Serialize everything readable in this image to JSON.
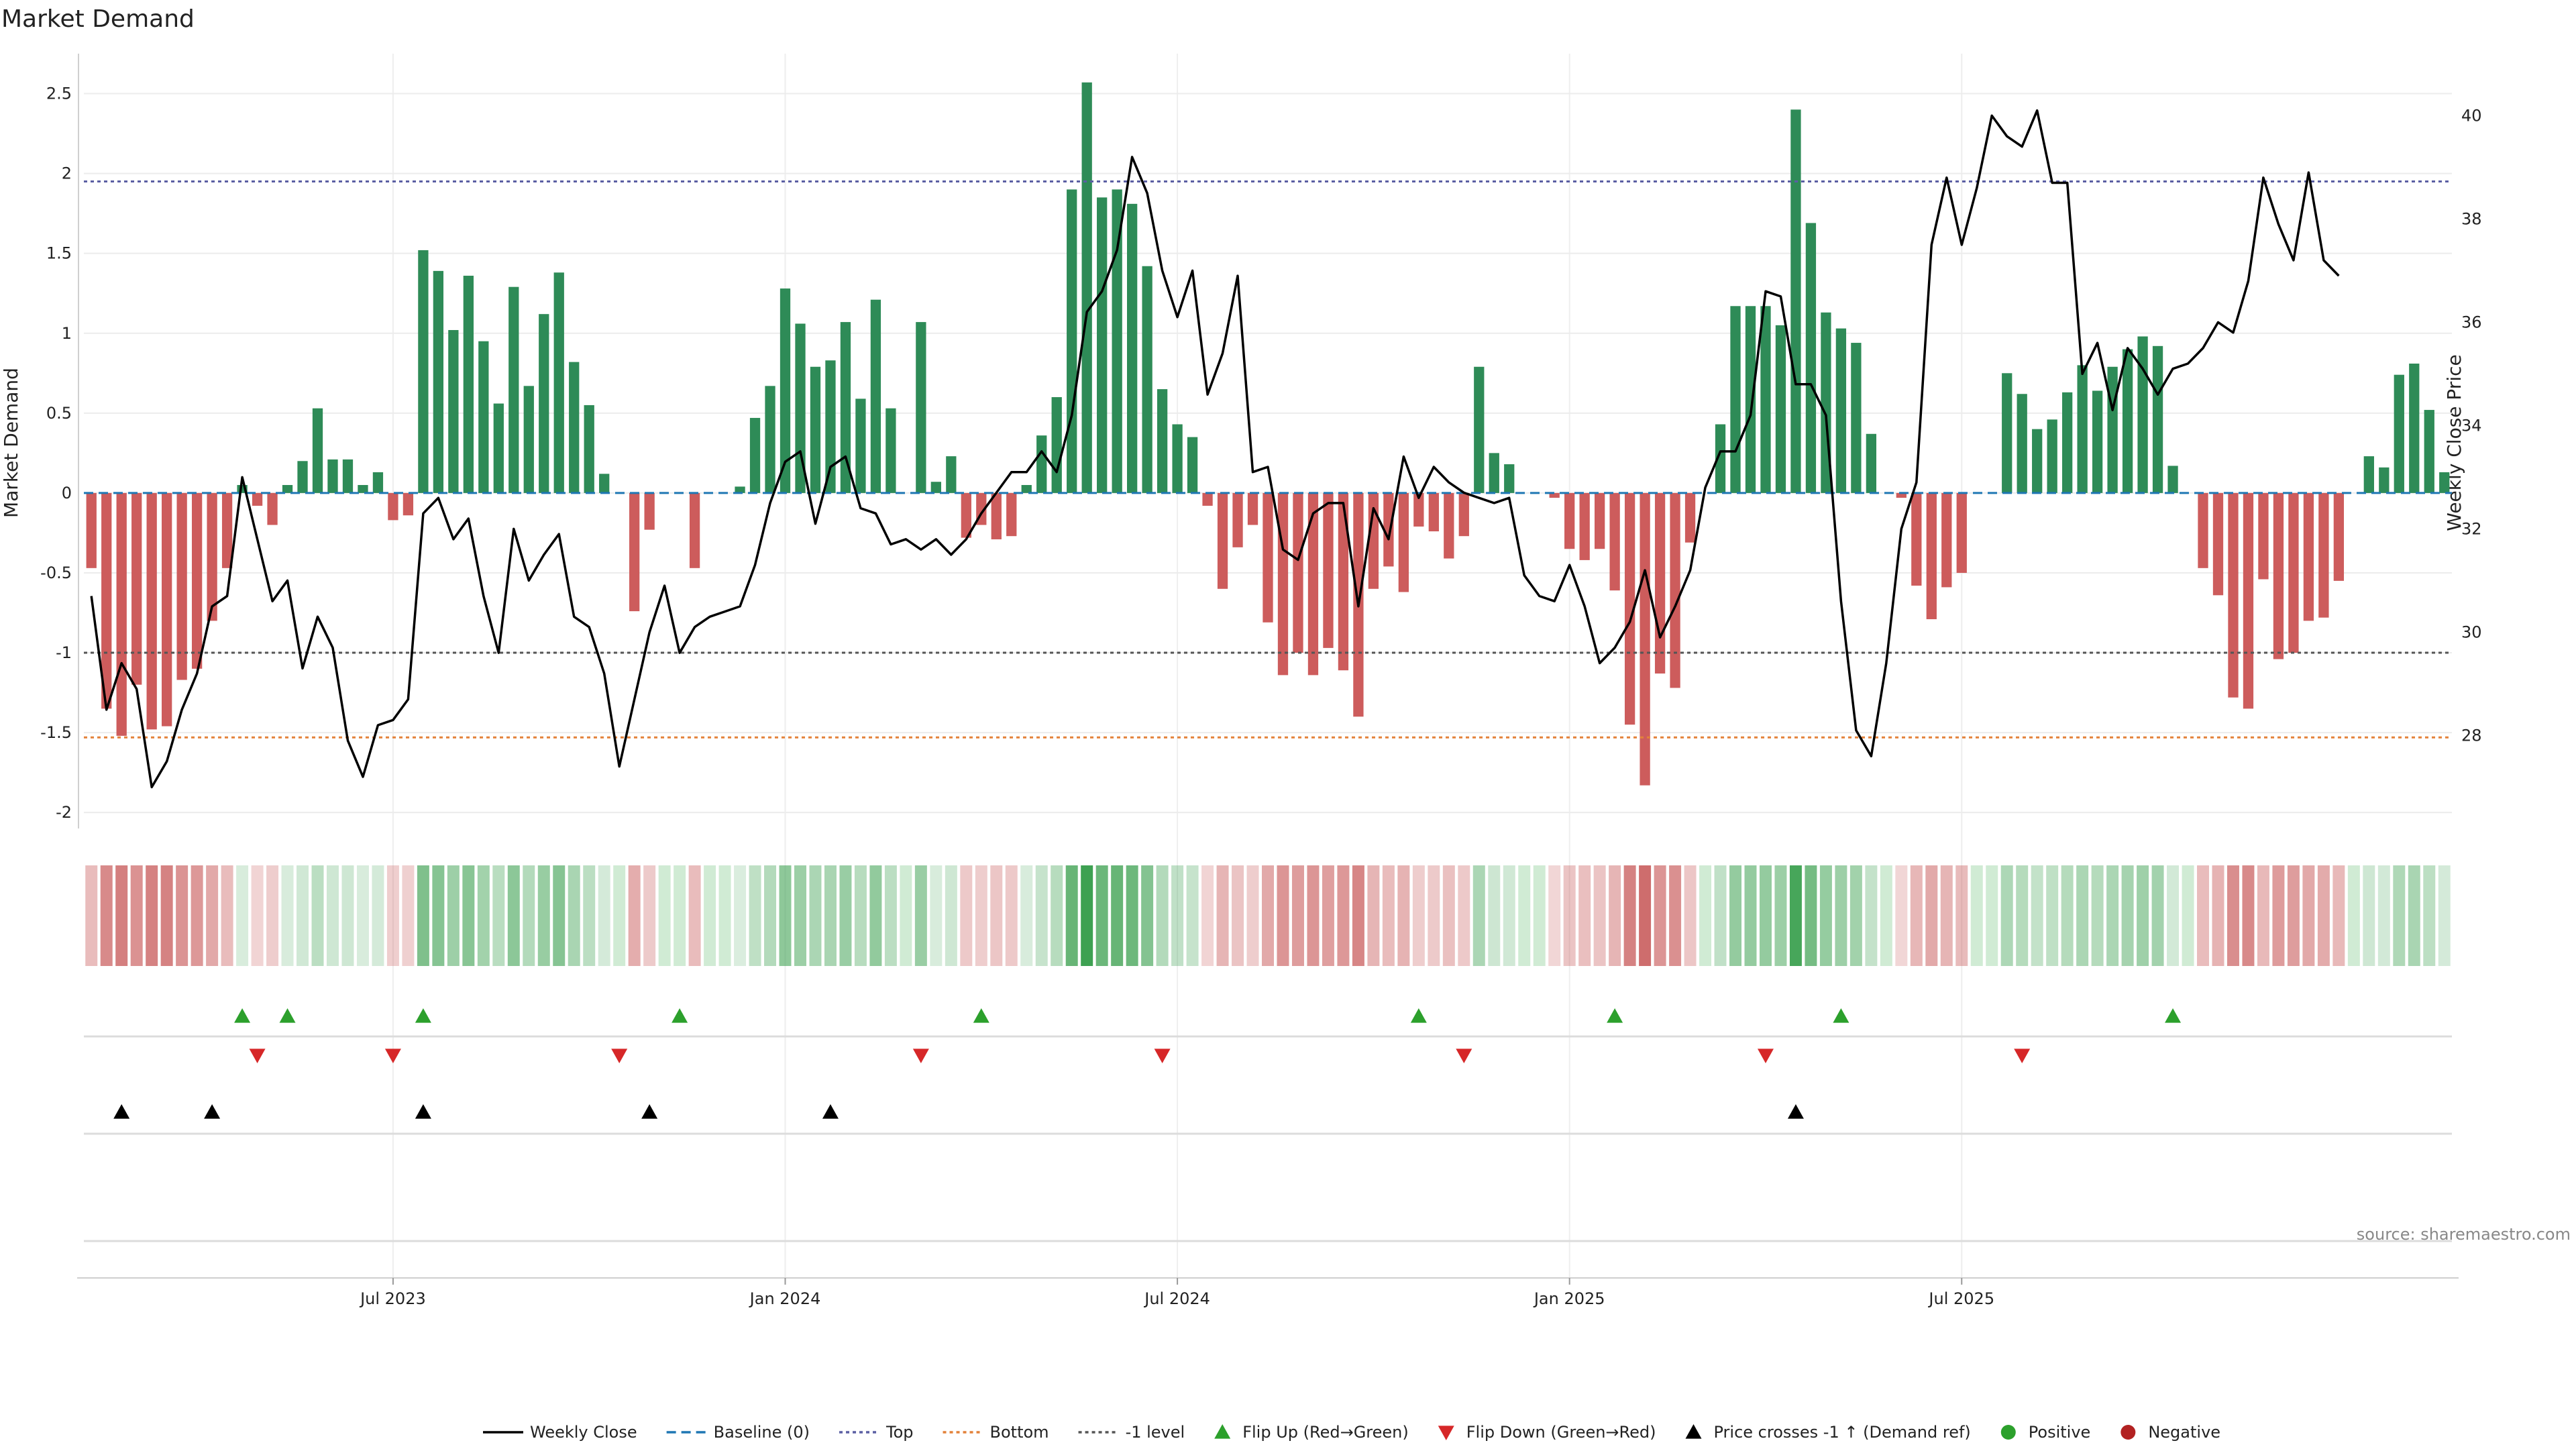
{
  "title": "Market Demand",
  "source": "source: sharemaestro.com",
  "chart_data": {
    "type": "bar+line",
    "left_axis": {
      "label": "Market Demand",
      "ylim": [
        -2.1,
        2.75
      ],
      "ticks": [
        -2,
        -1.5,
        -1,
        -0.5,
        0,
        0.5,
        1,
        1.5,
        2,
        2.5
      ]
    },
    "right_axis": {
      "label": "Weekly Close Price",
      "ylim": [
        26.2,
        41.2
      ],
      "ticks": [
        28,
        30,
        32,
        34,
        36,
        38,
        40
      ]
    },
    "x_ticks": [
      {
        "label": "Jul 2023",
        "week": 20
      },
      {
        "label": "Jan 2024",
        "week": 46
      },
      {
        "label": "Jul 2024",
        "week": 72
      },
      {
        "label": "Jan 2025",
        "week": 98
      },
      {
        "label": "Jul 2025",
        "week": 124
      }
    ],
    "reference_lines": {
      "top": 1.95,
      "bottom": -1.53,
      "minus_one": -1.0,
      "baseline": 0
    },
    "demand": [
      -0.47,
      -1.35,
      -1.52,
      -1.2,
      -1.48,
      -1.46,
      -1.17,
      -1.1,
      -0.8,
      -0.47,
      0.05,
      -0.08,
      -0.2,
      0.05,
      0.2,
      0.53,
      0.21,
      0.21,
      0.05,
      0.13,
      -0.17,
      -0.14,
      1.52,
      1.39,
      1.02,
      1.36,
      0.95,
      0.56,
      1.29,
      0.67,
      1.12,
      1.38,
      0.82,
      0.55,
      0.12,
      0.0,
      -0.74,
      -0.23,
      0.0,
      0.0,
      -0.47,
      0.0,
      0.0,
      0.04,
      0.47,
      0.67,
      1.28,
      1.06,
      0.79,
      0.83,
      1.07,
      0.59,
      1.21,
      0.53,
      0.0,
      1.07,
      0.07,
      0.23,
      -0.28,
      -0.2,
      -0.29,
      -0.27,
      0.05,
      0.36,
      0.6,
      1.9,
      2.57,
      1.85,
      1.9,
      1.81,
      1.42,
      0.65,
      0.43,
      0.35,
      -0.08,
      -0.6,
      -0.34,
      -0.2,
      -0.81,
      -1.14,
      -1.0,
      -1.14,
      -0.97,
      -1.11,
      -1.4,
      -0.6,
      -0.46,
      -0.62,
      -0.21,
      -0.24,
      -0.41,
      -0.27,
      0.79,
      0.25,
      0.18,
      0.0,
      0.0,
      -0.03,
      -0.35,
      -0.42,
      -0.35,
      -0.61,
      -1.45,
      -1.83,
      -1.13,
      -1.22,
      -0.31,
      0.0,
      0.43,
      1.17,
      1.17,
      1.17,
      1.05,
      2.4,
      1.69,
      1.13,
      1.03,
      0.94,
      0.37,
      0.0,
      -0.03,
      -0.58,
      -0.79,
      -0.59,
      -0.5,
      0.0,
      0.0,
      0.75,
      0.62,
      0.4,
      0.46,
      0.63,
      0.8,
      0.64,
      0.79,
      0.9,
      0.98,
      0.92,
      0.17,
      0.0,
      -0.47,
      -0.64,
      -1.28,
      -1.35,
      -0.54,
      -1.04,
      -1.0,
      -0.8,
      -0.78,
      -0.55,
      0.0,
      0.23,
      0.16,
      0.74,
      0.81,
      0.52,
      0.13
    ],
    "weekly_close": [
      30.7,
      28.5,
      29.4,
      28.9,
      27.0,
      27.5,
      28.5,
      29.2,
      30.5,
      30.7,
      33.0,
      31.8,
      30.6,
      31.0,
      29.3,
      30.3,
      29.7,
      27.9,
      27.2,
      28.2,
      28.3,
      28.7,
      32.3,
      32.6,
      31.8,
      32.2,
      30.7,
      29.6,
      32.0,
      31.0,
      31.5,
      31.9,
      30.3,
      30.1,
      29.2,
      27.4,
      28.7,
      30.0,
      30.9,
      29.6,
      30.1,
      30.3,
      30.4,
      30.5,
      31.3,
      32.5,
      33.3,
      33.5,
      32.1,
      33.2,
      33.4,
      32.4,
      32.3,
      31.7,
      31.8,
      31.6,
      31.8,
      31.5,
      31.8,
      32.3,
      32.7,
      33.1,
      33.1,
      33.5,
      33.1,
      34.2,
      36.2,
      36.6,
      37.4,
      39.2,
      38.5,
      37.0,
      36.1,
      37.0,
      34.6,
      35.4,
      36.9,
      33.1,
      33.2,
      31.6,
      31.4,
      32.3,
      32.5,
      32.5,
      30.5,
      32.4,
      31.8,
      33.4,
      32.6,
      33.2,
      32.9,
      32.7,
      32.6,
      32.5,
      32.6,
      31.1,
      30.7,
      30.6,
      31.3,
      30.5,
      29.4,
      29.7,
      30.2,
      31.2,
      29.9,
      30.5,
      31.2,
      32.8,
      33.5,
      33.5,
      34.2,
      36.6,
      36.5,
      34.8,
      34.8,
      34.2,
      30.6,
      28.1,
      27.6,
      29.4,
      32.0,
      32.9,
      37.5,
      38.8,
      37.5,
      38.6,
      40.0,
      39.6,
      39.4,
      40.1,
      38.7,
      38.7,
      35.0,
      35.6,
      34.3,
      35.5,
      35.1,
      34.6,
      35.1,
      35.2,
      35.5,
      36.0,
      35.8,
      36.8,
      38.8,
      37.9,
      37.2,
      38.9,
      37.2,
      36.9
    ]
  },
  "flip_up_weeks": [
    10,
    13,
    22,
    39,
    59,
    88,
    101,
    116,
    138
  ],
  "flip_down_weeks": [
    11,
    20,
    35,
    55,
    71,
    91,
    111,
    128
  ],
  "price_cross_weeks": [
    2,
    8,
    22,
    37,
    49,
    113
  ],
  "legend": [
    {
      "label": "Weekly Close",
      "kind": "solid-line",
      "color": "#000000"
    },
    {
      "label": "Baseline (0)",
      "kind": "dash-line",
      "color": "#1f77b4"
    },
    {
      "label": "Top",
      "kind": "dot-line",
      "color": "#5b5fa3"
    },
    {
      "label": "Bottom",
      "kind": "dot-line",
      "color": "#e3823a"
    },
    {
      "label": "-1 level",
      "kind": "dot-line",
      "color": "#555555"
    },
    {
      "label": "Flip Up (Red→Green)",
      "kind": "tri-up",
      "color": "#2ca02c"
    },
    {
      "label": "Flip Down (Green→Red)",
      "kind": "tri-down",
      "color": "#d62728"
    },
    {
      "label": "Price crosses -1 ↑ (Demand ref)",
      "kind": "tri-up",
      "color": "#000000"
    },
    {
      "label": "Positive",
      "kind": "dot",
      "color": "#2ca02c"
    },
    {
      "label": "Negative",
      "kind": "dot",
      "color": "#b22222"
    }
  ],
  "colors": {
    "positive": "#2e8b57",
    "negative": "#cd5c5c",
    "price": "#000000"
  }
}
